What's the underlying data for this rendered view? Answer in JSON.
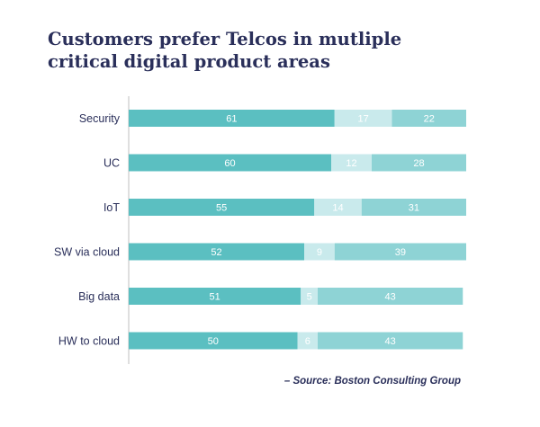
{
  "title": {
    "line1": "Customers prefer Telcos in mutliple",
    "line2": "critical digital product areas"
  },
  "source": "– Source: Boston Consulting Group",
  "colors": {
    "series1": "#5bbfc1",
    "series2": "#c9eaec",
    "series3": "#8ed3d5",
    "axis": "#bfbfbf",
    "text": "#2a2f5a"
  },
  "chart_data": {
    "type": "bar",
    "orientation": "horizontal",
    "stacked": true,
    "categories": [
      "Security",
      "UC",
      "IoT",
      "SW via cloud",
      "Big data",
      "HW to cloud"
    ],
    "series": [
      {
        "values": [
          61,
          60,
          55,
          52,
          51,
          50
        ]
      },
      {
        "values": [
          17,
          12,
          14,
          9,
          5,
          6
        ]
      },
      {
        "values": [
          22,
          28,
          31,
          39,
          43,
          43
        ]
      }
    ],
    "xlim": [
      0,
      100
    ],
    "grid": false,
    "legend": "none"
  }
}
